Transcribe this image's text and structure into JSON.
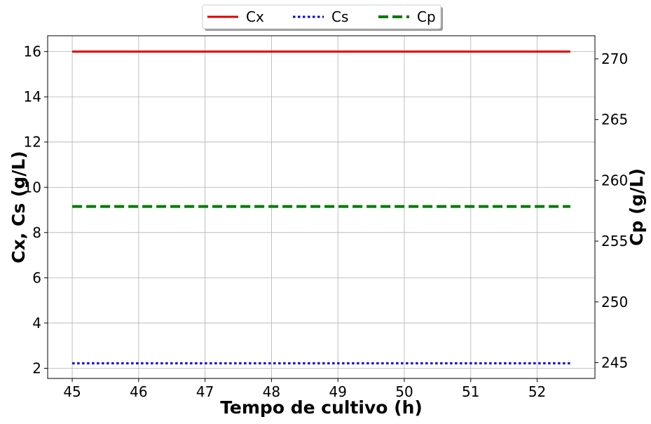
{
  "chart_data": {
    "type": "line",
    "xlabel": "Tempo de cultivo (h)",
    "ylabel_left": "Cx, Cs (g/L)",
    "ylabel_right": "Cp (g/L)",
    "xlim": [
      44.63,
      52.87
    ],
    "ylim_left": [
      1.55,
      16.7
    ],
    "ylim_right": [
      243.7,
      271.9
    ],
    "x_ticks": [
      45,
      46,
      47,
      48,
      49,
      50,
      51,
      52
    ],
    "x_tick_labels": [
      "45",
      "46",
      "47",
      "48",
      "49",
      "50",
      "51",
      "52"
    ],
    "y_left_ticks": [
      2,
      4,
      6,
      8,
      10,
      12,
      14,
      16
    ],
    "y_left_tick_labels": [
      "2",
      "4",
      "6",
      "8",
      "10",
      "12",
      "14",
      "16"
    ],
    "y_right_ticks": [
      245,
      250,
      255,
      260,
      265,
      270
    ],
    "y_right_tick_labels": [
      "245",
      "250",
      "255",
      "260",
      "265",
      "270"
    ],
    "grid": true,
    "legend_position": "top-center",
    "series": [
      {
        "name": "Cx",
        "axis": "left",
        "color": "#e00000",
        "style": "solid",
        "x": [
          45,
          52.5
        ],
        "y": [
          16.0,
          16.0
        ]
      },
      {
        "name": "Cs",
        "axis": "left",
        "color": "#0000e0",
        "style": "dotted",
        "x": [
          45,
          52.5
        ],
        "y": [
          2.22,
          2.22
        ]
      },
      {
        "name": "Cp",
        "axis": "right",
        "color": "#007a00",
        "style": "dashed",
        "x": [
          45,
          52.5
        ],
        "y": [
          257.85,
          257.85
        ]
      }
    ]
  }
}
